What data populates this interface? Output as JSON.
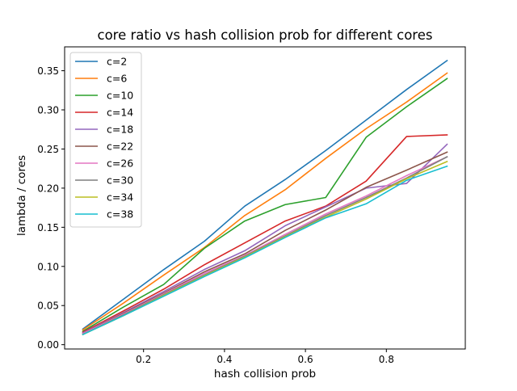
{
  "chart_data": {
    "type": "line",
    "title": "core ratio vs hash collision prob for different cores",
    "xlabel": "hash collision prob",
    "ylabel": "lambda / cores",
    "xlim": [
      0.005,
      0.995
    ],
    "ylim": [
      -0.0055,
      0.3805
    ],
    "xticks": [
      0.2,
      0.4,
      0.6,
      0.8
    ],
    "xtick_labels": [
      "0.2",
      "0.4",
      "0.6",
      "0.8"
    ],
    "yticks": [
      0.0,
      0.05,
      0.1,
      0.15,
      0.2,
      0.25,
      0.3,
      0.35
    ],
    "ytick_labels": [
      "0.00",
      "0.05",
      "0.10",
      "0.15",
      "0.20",
      "0.25",
      "0.30",
      "0.35"
    ],
    "grid": false,
    "legend_position": "top-left",
    "x": [
      0.05,
      0.15,
      0.25,
      0.35,
      0.45,
      0.55,
      0.65,
      0.75,
      0.85,
      0.95
    ],
    "series": [
      {
        "name": "c=2",
        "color": "#1f77b4",
        "values": [
          0.02,
          0.058,
          0.096,
          0.132,
          0.177,
          0.211,
          0.248,
          0.287,
          0.326,
          0.363
        ]
      },
      {
        "name": "c=6",
        "color": "#ff7f0e",
        "values": [
          0.019,
          0.053,
          0.089,
          0.124,
          0.165,
          0.198,
          0.238,
          0.276,
          0.31,
          0.347
        ]
      },
      {
        "name": "c=10",
        "color": "#2ca02c",
        "values": [
          0.017,
          0.048,
          0.077,
          0.123,
          0.158,
          0.179,
          0.188,
          0.265,
          0.304,
          0.34
        ]
      },
      {
        "name": "c=14",
        "color": "#d62728",
        "values": [
          0.016,
          0.043,
          0.071,
          0.102,
          0.13,
          0.158,
          0.177,
          0.209,
          0.266,
          0.268
        ]
      },
      {
        "name": "c=18",
        "color": "#9467bd",
        "values": [
          0.015,
          0.041,
          0.068,
          0.096,
          0.12,
          0.152,
          0.176,
          0.2,
          0.206,
          0.256
        ]
      },
      {
        "name": "c=22",
        "color": "#8c564b",
        "values": [
          0.014,
          0.04,
          0.066,
          0.093,
          0.116,
          0.146,
          0.172,
          0.201,
          0.223,
          0.246
        ]
      },
      {
        "name": "c=26",
        "color": "#e377c2",
        "values": [
          0.014,
          0.039,
          0.065,
          0.091,
          0.114,
          0.141,
          0.167,
          0.19,
          0.216,
          0.24
        ]
      },
      {
        "name": "c=30",
        "color": "#7f7f7f",
        "values": [
          0.013,
          0.038,
          0.064,
          0.089,
          0.113,
          0.139,
          0.165,
          0.188,
          0.213,
          0.24
        ]
      },
      {
        "name": "c=34",
        "color": "#bcbd22",
        "values": [
          0.013,
          0.037,
          0.063,
          0.088,
          0.112,
          0.138,
          0.163,
          0.186,
          0.212,
          0.234
        ]
      },
      {
        "name": "c=38",
        "color": "#17becf",
        "values": [
          0.013,
          0.037,
          0.062,
          0.087,
          0.111,
          0.137,
          0.162,
          0.18,
          0.21,
          0.228
        ]
      }
    ]
  }
}
